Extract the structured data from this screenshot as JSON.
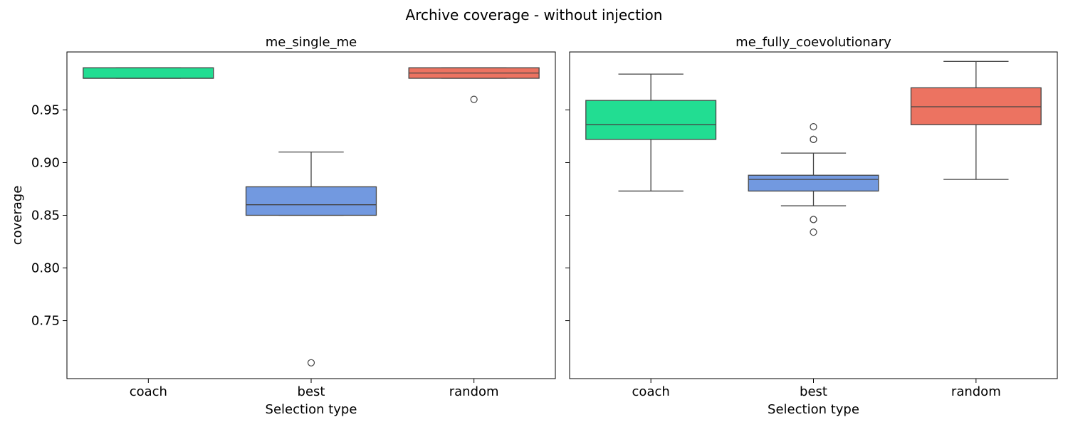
{
  "suptitle": "Archive coverage - without injection",
  "chart_data": [
    {
      "type": "box",
      "title": "me_single_me",
      "xlabel": "Selection type",
      "ylabel": "coverage",
      "ylim": [
        0.695,
        1.005
      ],
      "yticks": [
        "0.75",
        "0.80",
        "0.85",
        "0.90",
        "0.95"
      ],
      "categories": [
        "coach",
        "best",
        "random"
      ],
      "colors": [
        "#22dd92",
        "#7299e0",
        "#ec7361"
      ],
      "boxes": [
        {
          "q1": 0.98,
          "median": 0.98,
          "q3": 0.99,
          "whisker_low": 0.98,
          "whisker_high": 0.99,
          "outliers": []
        },
        {
          "q1": 0.85,
          "median": 0.86,
          "q3": 0.877,
          "whisker_low": 0.85,
          "whisker_high": 0.91,
          "outliers": [
            0.71
          ]
        },
        {
          "q1": 0.98,
          "median": 0.985,
          "q3": 0.99,
          "whisker_low": 0.98,
          "whisker_high": 0.99,
          "outliers": [
            0.96
          ]
        }
      ]
    },
    {
      "type": "box",
      "title": "me_fully_coevolutionary",
      "xlabel": "Selection type",
      "ylabel": "",
      "ylim": [
        0.695,
        1.005
      ],
      "yticks": [
        "",
        "",
        "",
        "",
        ""
      ],
      "categories": [
        "coach",
        "best",
        "random"
      ],
      "colors": [
        "#22dd92",
        "#7299e0",
        "#ec7361"
      ],
      "boxes": [
        {
          "q1": 0.922,
          "median": 0.936,
          "q3": 0.959,
          "whisker_low": 0.873,
          "whisker_high": 0.984,
          "outliers": []
        },
        {
          "q1": 0.873,
          "median": 0.884,
          "q3": 0.888,
          "whisker_low": 0.859,
          "whisker_high": 0.909,
          "outliers": [
            0.922,
            0.922,
            0.934,
            0.846,
            0.846,
            0.834
          ]
        },
        {
          "q1": 0.936,
          "median": 0.953,
          "q3": 0.971,
          "whisker_low": 0.884,
          "whisker_high": 0.996,
          "outliers": []
        }
      ]
    }
  ]
}
